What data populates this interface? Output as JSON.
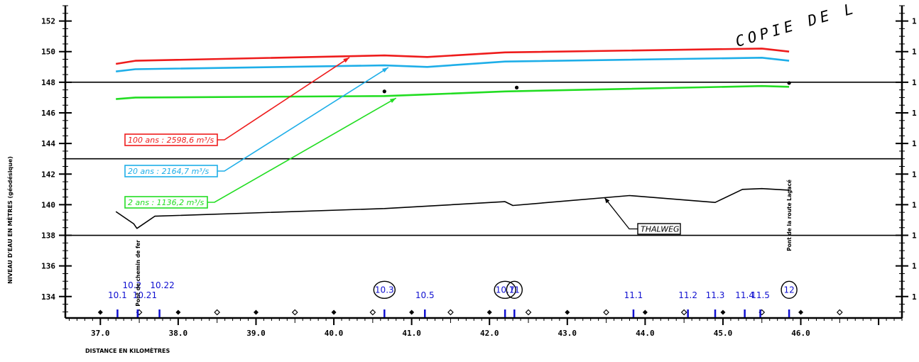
{
  "chart_data": {
    "type": "line",
    "title": "",
    "xlabel": "DISTANCE EN KILOMÈTRES",
    "ylabel": "NIVEAU D'EAU EN MÈTRES (géodésique)",
    "xlim": [
      36.55,
      47.3
    ],
    "ylim": [
      132.6,
      153.0
    ],
    "x_ticks": [
      37.0,
      38.0,
      39.0,
      40.0,
      41.0,
      42.0,
      43.0,
      44.0,
      45.0,
      46.0
    ],
    "x_tick_labels": [
      "37.0",
      "38.0",
      "39.0",
      "40.0",
      "41.0",
      "42.0",
      "43.0",
      "44.0",
      "45.0",
      "46.0"
    ],
    "y_ticks": [
      134,
      136,
      138,
      140,
      142,
      144,
      146,
      148,
      150,
      152
    ],
    "y_tick_labels": [
      "134",
      "136",
      "138",
      "140",
      "142",
      "144",
      "146",
      "148",
      "150",
      "152"
    ],
    "right_tick_labels": [
      "1",
      "1",
      "1",
      "1",
      "1",
      "1",
      "1",
      "1",
      "1",
      "1"
    ],
    "hlines": [
      148,
      143,
      138
    ],
    "grid": false,
    "series": [
      {
        "name": "100 ans",
        "legend_text": "100 ans : 2598,6 m³/s",
        "color": "#ee1c1c",
        "x": [
          37.2,
          37.45,
          40.65,
          41.2,
          42.2,
          45.5,
          45.85
        ],
        "y": [
          149.2,
          149.4,
          149.75,
          149.65,
          149.95,
          150.2,
          150.0
        ]
      },
      {
        "name": "20 ans",
        "legend_text": "20 ans : 2164,7 m³/s",
        "color": "#1eaee8",
        "x": [
          37.2,
          37.45,
          40.65,
          41.2,
          42.2,
          45.5,
          45.85
        ],
        "y": [
          148.7,
          148.85,
          149.1,
          149.0,
          149.35,
          149.6,
          149.4
        ]
      },
      {
        "name": "2 ans",
        "legend_text": "2 ans : 1136,2 m³/s",
        "color": "#22dd22",
        "x": [
          37.2,
          37.45,
          40.65,
          41.2,
          42.2,
          45.5,
          45.85
        ],
        "y": [
          146.9,
          147.0,
          147.1,
          147.2,
          147.4,
          147.75,
          147.7
        ]
      },
      {
        "name": "THALWEG",
        "legend_text": "THALWEG",
        "color": "#000000",
        "x": [
          37.2,
          37.43,
          37.47,
          37.7,
          40.65,
          42.2,
          42.3,
          43.8,
          44.9,
          45.25,
          45.5,
          45.85
        ],
        "y": [
          139.55,
          138.75,
          138.45,
          139.25,
          139.75,
          140.2,
          139.95,
          140.6,
          140.15,
          141.0,
          141.05,
          140.95
        ]
      }
    ],
    "observed_points": [
      {
        "x": 40.65,
        "y": 147.4
      },
      {
        "x": 42.35,
        "y": 147.65
      },
      {
        "x": 45.85,
        "y": 147.95
      }
    ],
    "sections": [
      {
        "label": "10.1",
        "x": 37.22,
        "circled": false
      },
      {
        "label": "10.2",
        "x": 37.48,
        "circled": false
      },
      {
        "label": "10.21",
        "x": 37.48,
        "circled": false
      },
      {
        "label": "10.22",
        "x": 37.76,
        "circled": false
      },
      {
        "label": "10.3",
        "x": 40.65,
        "circled": true
      },
      {
        "label": "10.5",
        "x": 41.17,
        "circled": false
      },
      {
        "label": "10.7",
        "x": 42.2,
        "circled": true
      },
      {
        "label": "11",
        "x": 42.32,
        "circled": true
      },
      {
        "label": "11.1",
        "x": 43.85,
        "circled": false
      },
      {
        "label": "11.2",
        "x": 44.55,
        "circled": false
      },
      {
        "label": "11.3",
        "x": 44.9,
        "circled": false
      },
      {
        "label": "11.4",
        "x": 45.28,
        "circled": false
      },
      {
        "label": "11.5",
        "x": 45.48,
        "circled": false
      },
      {
        "label": "12",
        "x": 45.85,
        "circled": true
      }
    ],
    "annotations": {
      "bridge_rail": "Pont de chemin de fer",
      "bridge_road": "Pont de la route Lagacé",
      "stamp": "COPIE DE L"
    }
  }
}
